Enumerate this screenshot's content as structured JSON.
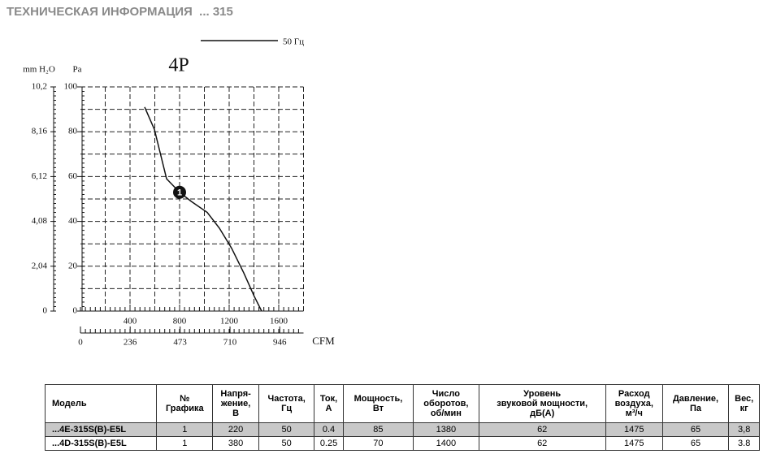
{
  "header": {
    "title": "ТЕХНИЧЕСКАЯ ИНФОРМАЦИЯ  ... 315"
  },
  "chart_data": {
    "type": "line",
    "title": "4P",
    "legend": "50 Гц",
    "y_label": "Pa",
    "y2_label": "mm H₂O",
    "x2_label": "CFM",
    "x": [
      518,
      597,
      695,
      800,
      892,
      1023,
      1121,
      1220,
      1318,
      1403,
      1462
    ],
    "series": [
      {
        "name": "50 Гц",
        "color": "#111111",
        "values": [
          91,
          81,
          59,
          53,
          49,
          44,
          37,
          28,
          17,
          6.5,
          0
        ]
      }
    ],
    "marker": {
      "x": 800,
      "y": 53,
      "label": "1"
    },
    "xlim": [
      0,
      1800
    ],
    "xticks": [
      400,
      800,
      1200,
      1600
    ],
    "x2lim": [
      0,
      1059
    ],
    "x2ticks": [
      0,
      236,
      473,
      710,
      946
    ],
    "ylim": [
      0,
      100
    ],
    "yticks": [
      0,
      20,
      40,
      60,
      80,
      100
    ],
    "y2lim": [
      0,
      10.2
    ],
    "y2ticks": [
      0,
      {
        "value": 2.04,
        "label": "2,04"
      },
      {
        "value": 4.08,
        "label": "4,08"
      },
      {
        "value": 6.12,
        "label": "6,12"
      },
      {
        "value": 8.16,
        "label": "8,16"
      },
      {
        "value": 10.2,
        "label": "10,2"
      }
    ],
    "grid": true
  },
  "table": {
    "header": [
      "Модель",
      "№\nГрафика",
      "Напря-\nжение,\nВ",
      "Частота,\nГц",
      "Ток,\nА",
      "Мощность,\nВт",
      "Число\nоборотов,\nоб/мин",
      "Уровень\nзвуковой мощности,\nдБ(А)",
      "Расход\nвоздуха,\nм³/ч",
      "Давление,\nПа",
      "Вес,\nкг"
    ],
    "rows": [
      [
        "...4E-315S(B)-E5L",
        "1",
        "220",
        "50",
        "0.4",
        "85",
        "1380",
        "62",
        "1475",
        "65",
        "3,8"
      ],
      [
        "...4D-315S(B)-E5L",
        "1",
        "380",
        "50",
        "0.25",
        "70",
        "1400",
        "62",
        "1475",
        "65",
        "3.8"
      ]
    ]
  }
}
